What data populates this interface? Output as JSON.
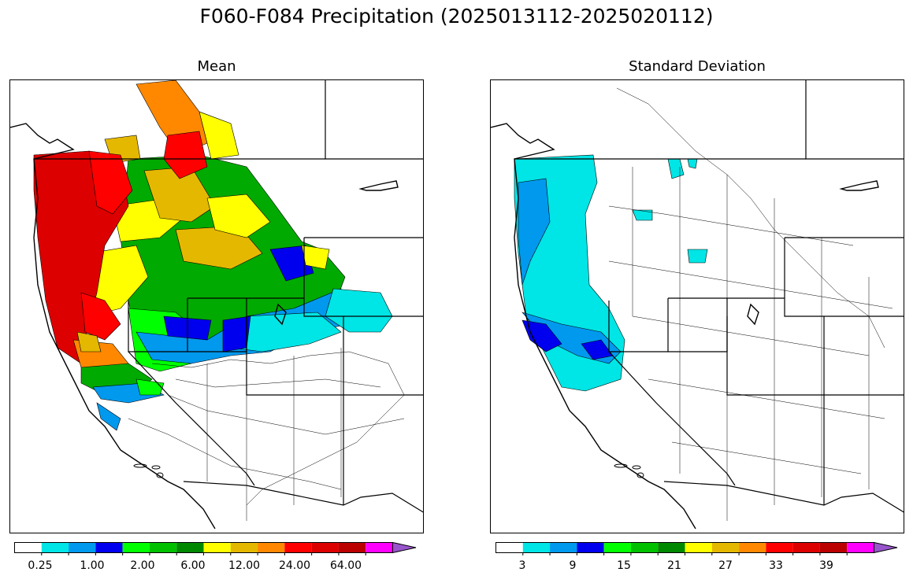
{
  "title": "F060-F084 Precipitation (2025013112-2025020112)",
  "panels": [
    {
      "title": "Mean",
      "colorbar": {
        "colors": [
          "#ffffff",
          "#00e5e5",
          "#0099ee",
          "#0000ee",
          "#00ff00",
          "#00c000",
          "#008800",
          "#ffff00",
          "#e5b800",
          "#ff8800",
          "#ff0000",
          "#dd0000",
          "#bb0000",
          "#ff00ff",
          "#9955cc"
        ],
        "tick_labels": [
          "0.25",
          "1.00",
          "2.00",
          "6.00",
          "12.00",
          "24.00",
          "64.00"
        ]
      }
    },
    {
      "title": "Standard Deviation",
      "colorbar": {
        "colors": [
          "#ffffff",
          "#00e5e5",
          "#0099ee",
          "#0000ee",
          "#00ff00",
          "#00c000",
          "#008800",
          "#ffff00",
          "#e5b800",
          "#ff8800",
          "#ff0000",
          "#dd0000",
          "#bb0000",
          "#ff00ff",
          "#9955cc"
        ],
        "tick_labels": [
          "3",
          "9",
          "15",
          "21",
          "27",
          "33",
          "39"
        ]
      }
    }
  ]
}
